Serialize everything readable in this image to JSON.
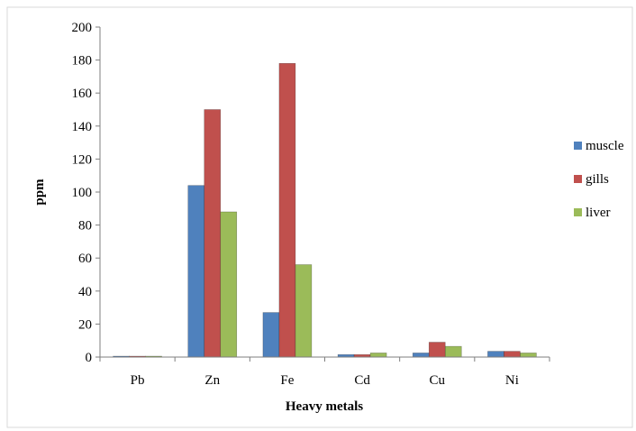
{
  "chart_data": {
    "type": "bar",
    "title": "",
    "xlabel": "Heavy metals",
    "ylabel": "ppm",
    "ylim": [
      0,
      200
    ],
    "yticks": [
      "0",
      "20",
      "40",
      "60",
      "80",
      "100",
      "120",
      "140",
      "160",
      "180",
      "200"
    ],
    "categories": [
      "Pb",
      "Zn",
      "Fe",
      "Cd",
      "Cu",
      "Ni"
    ],
    "series": [
      {
        "name": "muscle",
        "color": "#4f81bd",
        "values": [
          0.5,
          104,
          27,
          1.5,
          2.5,
          3.5
        ]
      },
      {
        "name": "gills",
        "color": "#c0504d",
        "values": [
          0.5,
          150,
          178,
          1.5,
          9,
          3.5
        ]
      },
      {
        "name": "liver",
        "color": "#9bbb59",
        "values": [
          0.5,
          88,
          56,
          2.5,
          6.5,
          2.5
        ]
      }
    ],
    "grid": false,
    "legend_position": "right"
  }
}
